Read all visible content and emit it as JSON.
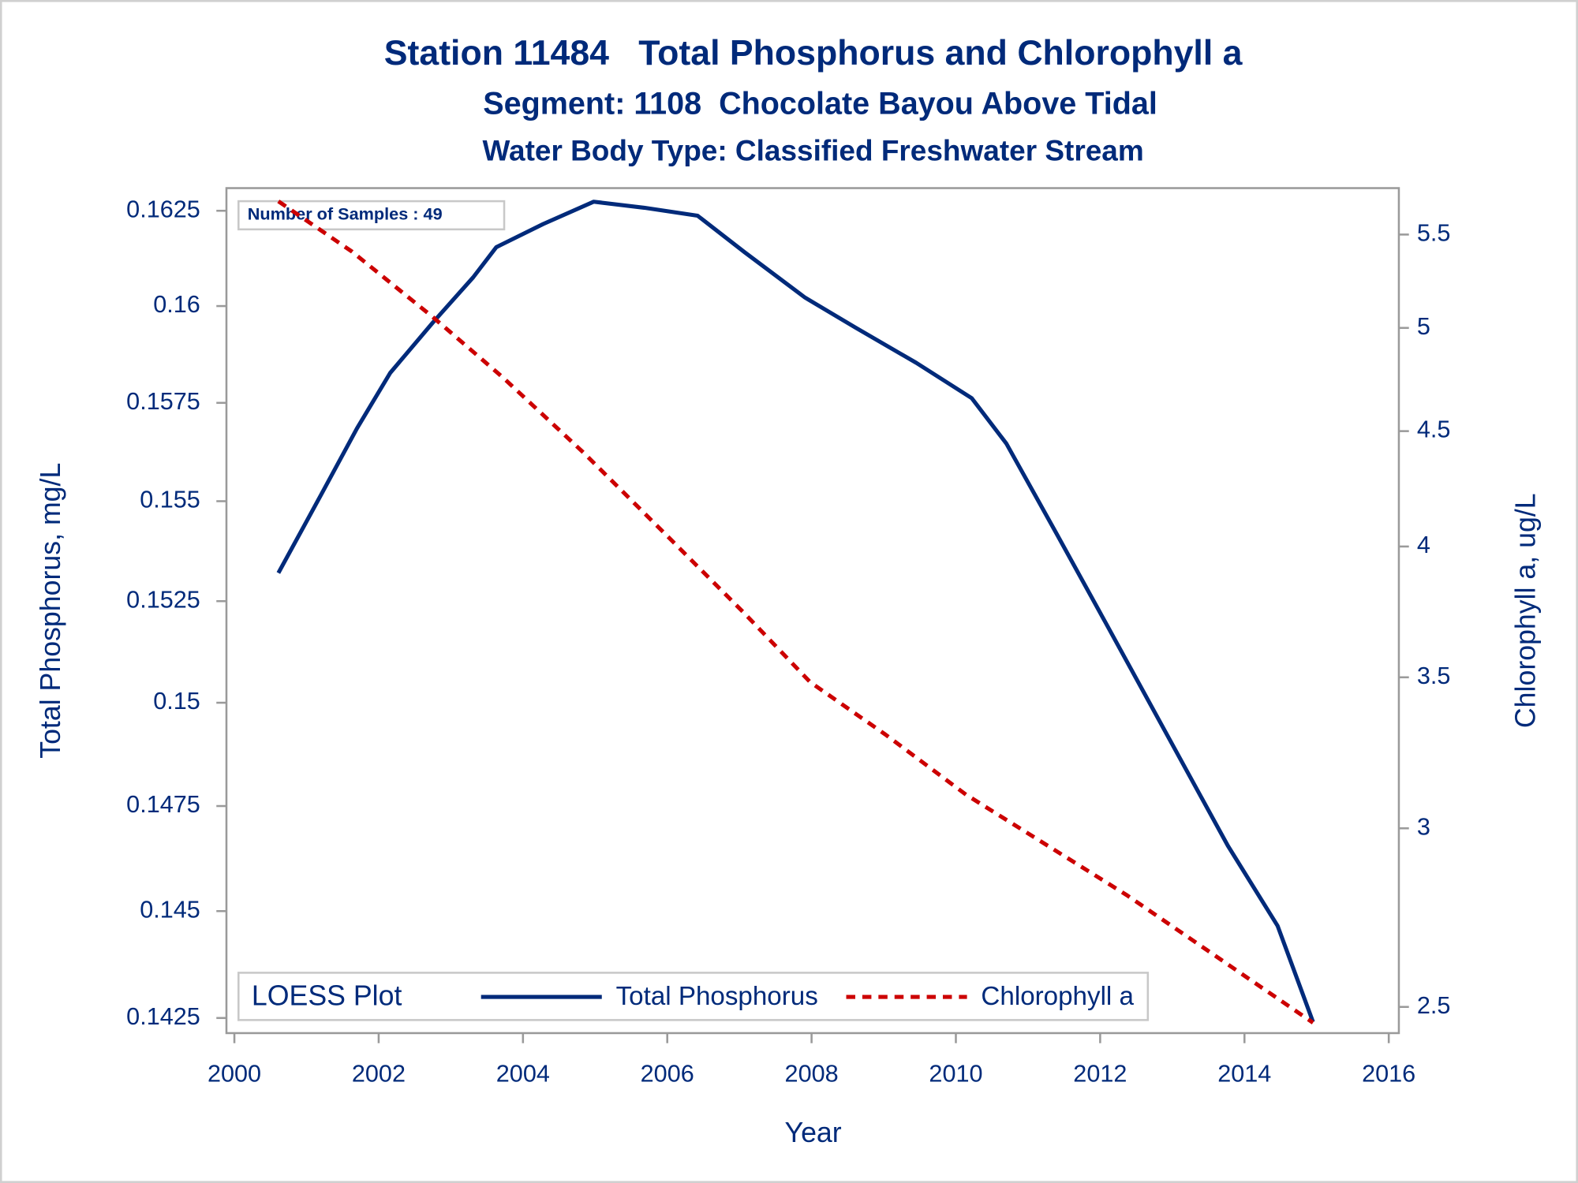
{
  "chart_data": {
    "type": "line",
    "title": "Station 11484   Total Phosphorus and Chlorophyll a",
    "subtitle": "Segment: 1108  Chocolate Bayou Above Tidal",
    "subtitle2": "Water Body Type: Classified Freshwater Stream",
    "annotation": "Number of Samples : 49",
    "xlabel": "Year",
    "ylabel": "Total Phosphorus, mg/L",
    "y2label": "Chlorophyll a, ug/L",
    "legend_title": "LOESS Plot",
    "legend": "bottom-left",
    "xlim": [
      1999.89,
      2016.14
    ],
    "xticks": [
      2000,
      2002,
      2004,
      2006,
      2008,
      2010,
      2012,
      2014,
      2016
    ],
    "ylim": [
      0.14215,
      0.1631
    ],
    "yticks": [
      0.1425,
      0.145,
      0.1475,
      0.15,
      0.1525,
      0.155,
      0.1575,
      0.16,
      0.1625
    ],
    "ylog": true,
    "y2lim": [
      2.434,
      5.767
    ],
    "y2ticks": [
      2.5,
      3,
      3.5,
      4,
      4.5,
      5,
      5.5
    ],
    "y2log": true,
    "series": [
      {
        "name": "Total Phosphorus",
        "color": "#002a7a",
        "line_style": "solid",
        "axis": "y",
        "x": [
          2000.61,
          2001.21,
          2001.7,
          2002.16,
          2002.75,
          2003.31,
          2003.63,
          2004.28,
          2004.98,
          2005.68,
          2006.42,
          2007.07,
          2007.91,
          2008.61,
          2009.45,
          2010.22,
          2010.7,
          2011.4,
          2012.09,
          2012.93,
          2013.77,
          2014.46,
          2014.95
        ],
        "values": [
          0.1532,
          0.15519,
          0.15685,
          0.15827,
          0.15957,
          0.16075,
          0.16154,
          0.16215,
          0.16274,
          0.16258,
          0.16237,
          0.16141,
          0.16022,
          0.15944,
          0.15853,
          0.15762,
          0.15646,
          0.15417,
          0.15192,
          0.14921,
          0.14655,
          0.14465,
          0.14241
        ]
      },
      {
        "name": "Chlorophyll a",
        "color": "#cc0000",
        "line_style": "dashed",
        "axis": "y2",
        "x": [
          2000.61,
          2001.63,
          2002.75,
          2003.72,
          2004.84,
          2005.96,
          2007.07,
          2007.98,
          2009.02,
          2010.14,
          2011.26,
          2012.37,
          2013.49,
          2014.95
        ],
        "values": [
          5.69,
          5.405,
          5.056,
          4.754,
          4.402,
          4.055,
          3.736,
          3.483,
          3.302,
          3.105,
          2.949,
          2.802,
          2.648,
          2.46
        ]
      }
    ]
  }
}
